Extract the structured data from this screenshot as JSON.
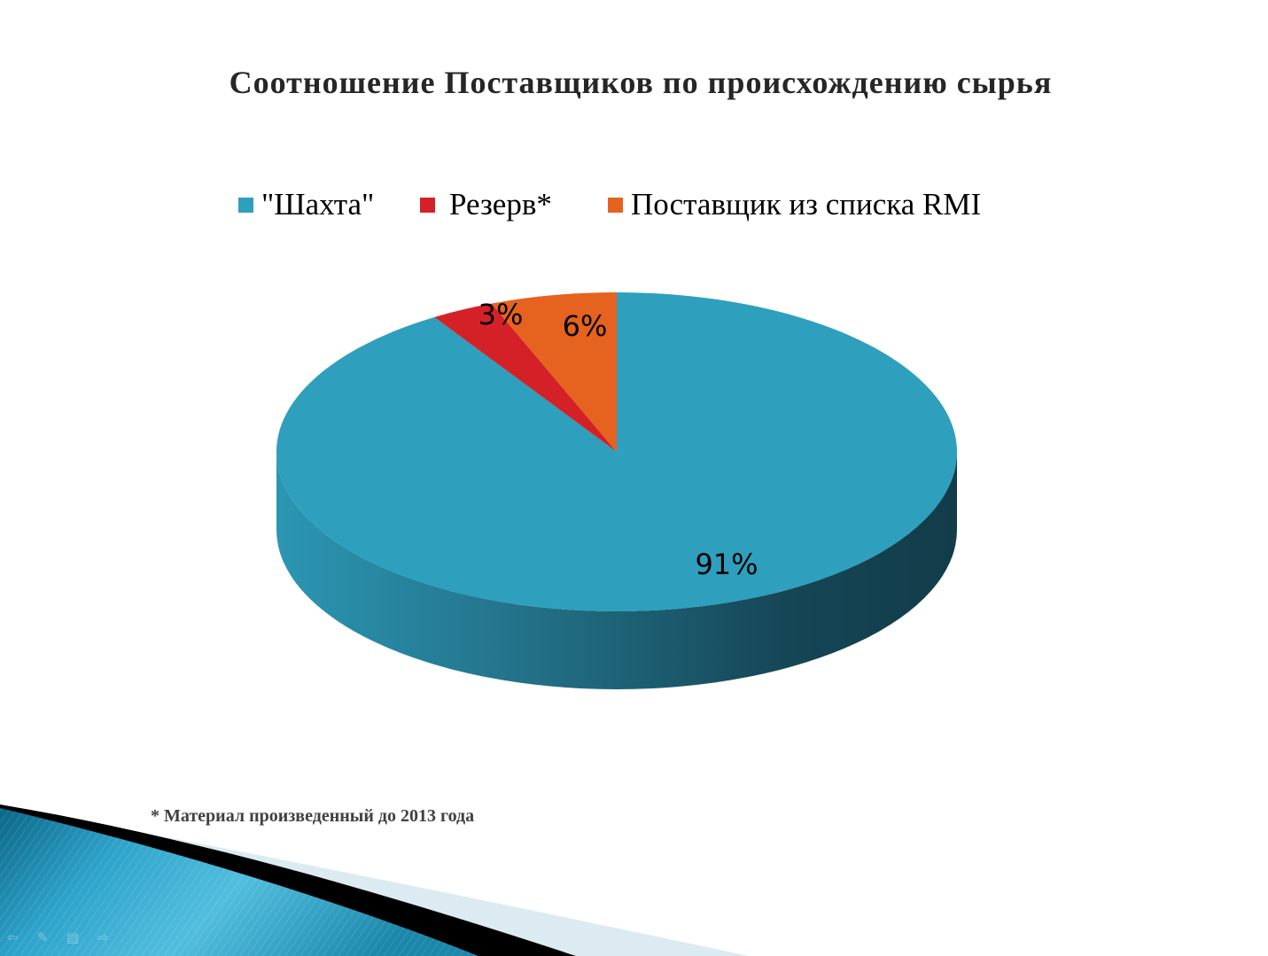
{
  "slide": {
    "title": "Соотношение Поставщиков по происхождению сырья",
    "footnote": "* Материал произведенный до 2013 года"
  },
  "legend": {
    "items": [
      {
        "label": "\"Шахта\"",
        "color": "#2E9FBD"
      },
      {
        "label": "Резерв*",
        "color": "#D42127"
      },
      {
        "label": "Поставщик из списка RMI",
        "color": "#E6621F"
      }
    ]
  },
  "chart_data": {
    "type": "pie",
    "style": "3d-pie",
    "title": "Соотношение Поставщиков по происхождению сырья",
    "categories": [
      "\"Шахта\"",
      "Резерв*",
      "Поставщик из списка RMI"
    ],
    "values": [
      91,
      3,
      6
    ],
    "data_labels": [
      "91%",
      "3%",
      "6%"
    ],
    "colors": [
      "#2E9FBD",
      "#D42127",
      "#E6621F"
    ],
    "legend_position": "top"
  },
  "nav": {
    "icons": [
      "arrow-left-icon",
      "pen-icon",
      "menu-icon",
      "arrow-right-icon"
    ]
  },
  "theme": {
    "accent": "#2E9FBD",
    "footer_wave_dark": "#0E6E8E",
    "footer_wave_light": "#DCEBF2"
  }
}
